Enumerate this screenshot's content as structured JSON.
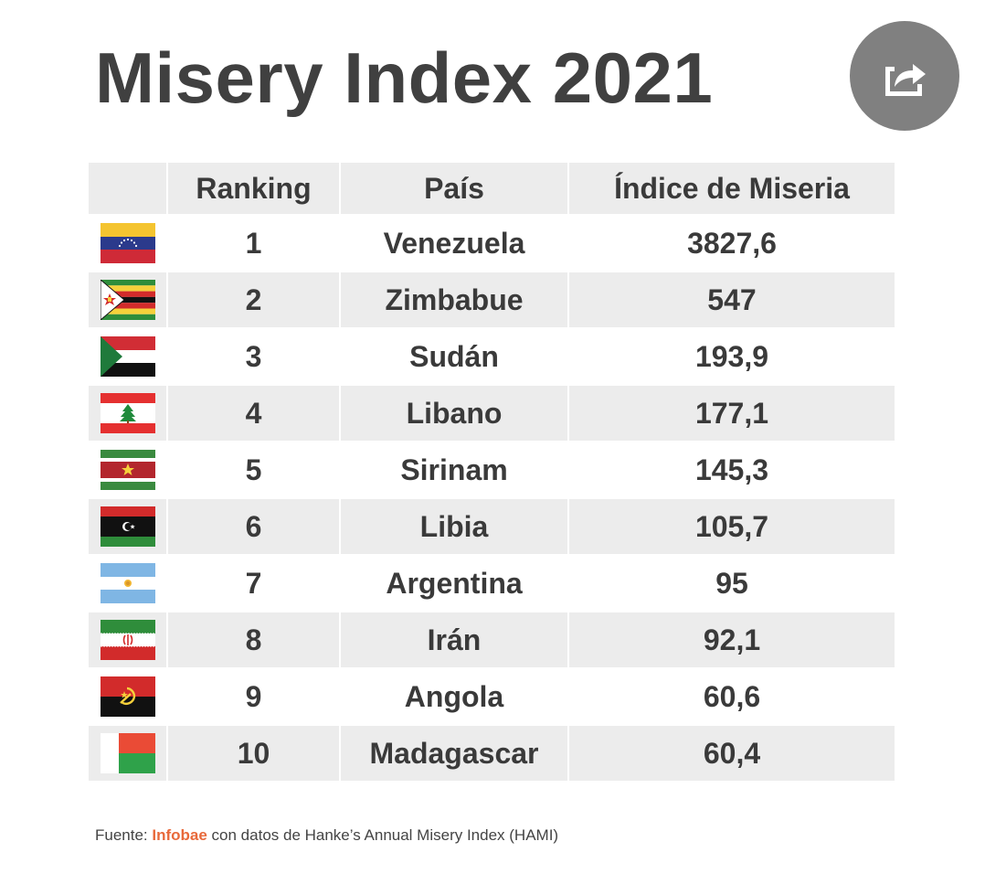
{
  "title": "Misery Index 2021",
  "share_button": {
    "icon": "share-icon"
  },
  "table": {
    "headers": {
      "flag": "",
      "rank": "Ranking",
      "country": "País",
      "value": "Índice de Miseria"
    },
    "rows": [
      {
        "rank": "1",
        "country": "Venezuela",
        "value": "3827,6",
        "flag": "venezuela-flag-icon"
      },
      {
        "rank": "2",
        "country": "Zimbabue",
        "value": "547",
        "flag": "zimbabwe-flag-icon"
      },
      {
        "rank": "3",
        "country": "Sudán",
        "value": "193,9",
        "flag": "sudan-flag-icon"
      },
      {
        "rank": "4",
        "country": "Libano",
        "value": "177,1",
        "flag": "lebanon-flag-icon"
      },
      {
        "rank": "5",
        "country": "Sirinam",
        "value": "145,3",
        "flag": "suriname-flag-icon"
      },
      {
        "rank": "6",
        "country": "Libia",
        "value": "105,7",
        "flag": "libya-flag-icon"
      },
      {
        "rank": "7",
        "country": "Argentina",
        "value": "95",
        "flag": "argentina-flag-icon"
      },
      {
        "rank": "8",
        "country": "Irán",
        "value": "92,1",
        "flag": "iran-flag-icon"
      },
      {
        "rank": "9",
        "country": "Angola",
        "value": "60,6",
        "flag": "angola-flag-icon"
      },
      {
        "rank": "10",
        "country": "Madagascar",
        "value": "60,4",
        "flag": "madagascar-flag-icon"
      }
    ]
  },
  "source": {
    "prefix": "Fuente: ",
    "brand": "Infobae",
    "suffix": " con datos de Hanke’s Annual Misery Index (HAMI)"
  },
  "colors": {
    "title": "#404040",
    "header_bg": "#ececec",
    "brand": "#e8693a",
    "share_button": "#808080"
  }
}
